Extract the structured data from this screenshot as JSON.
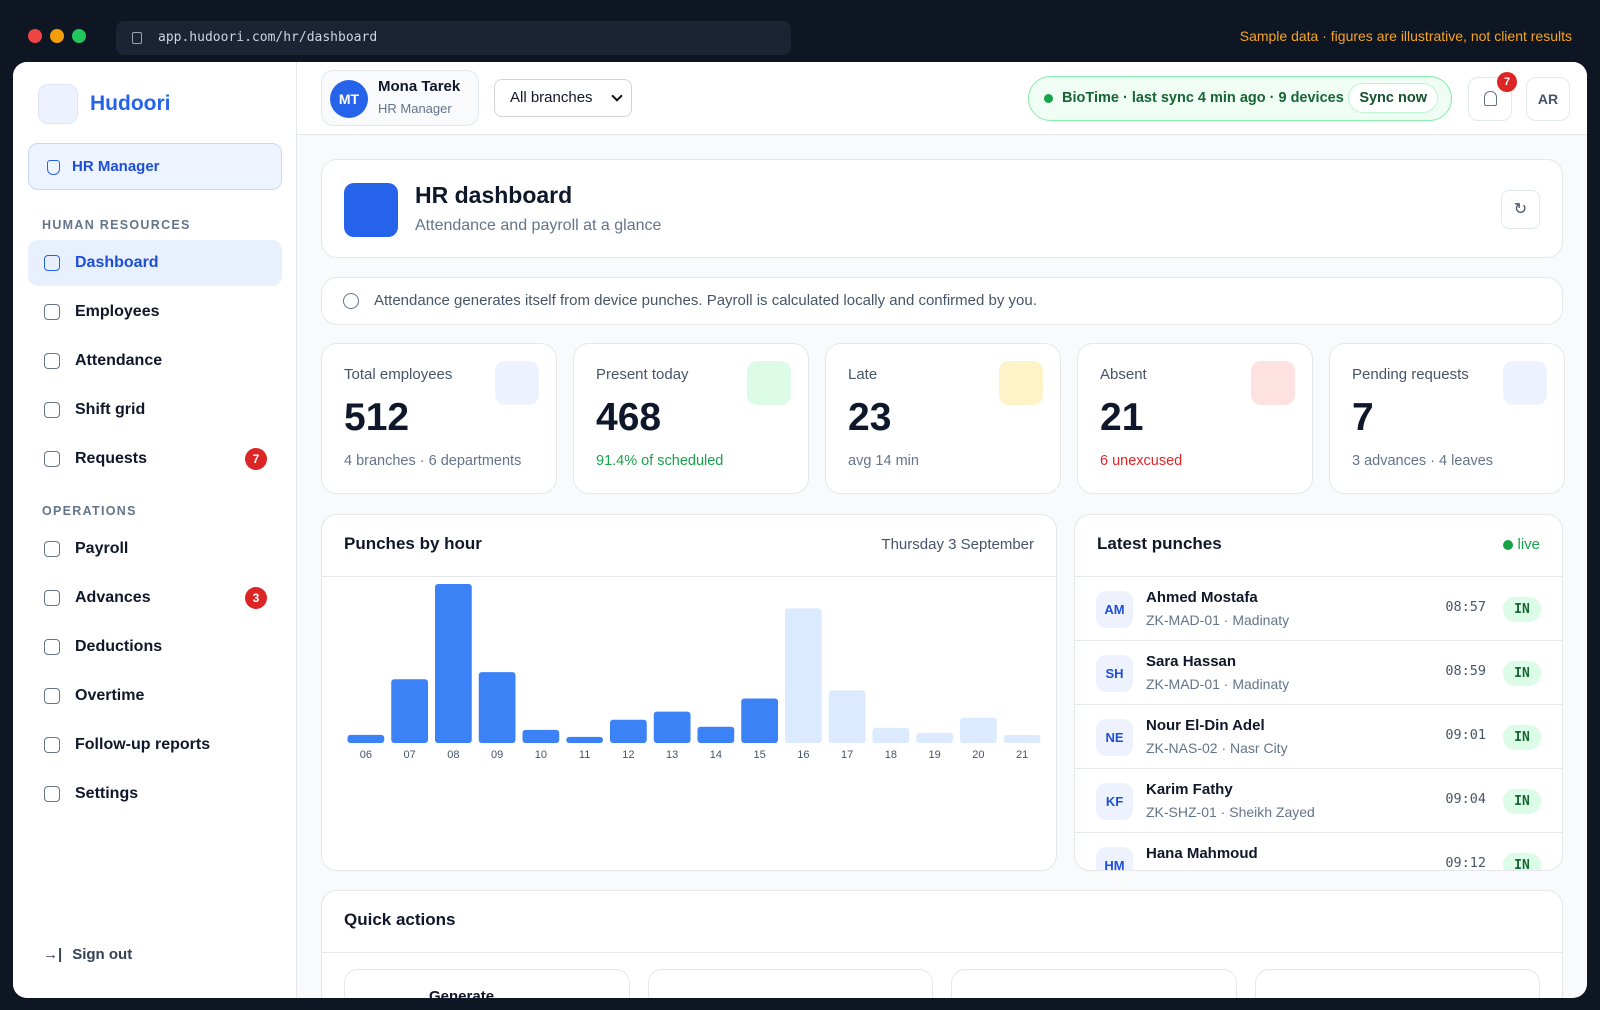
{
  "browser": {
    "url": "app.hudoori.com/hr/dashboard",
    "notice": "Sample data · figures are illustrative, not client results"
  },
  "sidebar": {
    "brand": "Hudoori",
    "role": "HR Manager",
    "sections": [
      {
        "title": "HUMAN RESOURCES",
        "items": [
          {
            "label": "Dashboard"
          },
          {
            "label": "Employees"
          },
          {
            "label": "Attendance"
          },
          {
            "label": "Shift grid"
          },
          {
            "label": "Requests",
            "badge": 7
          }
        ]
      },
      {
        "title": "OPERATIONS",
        "items": [
          {
            "label": "Payroll"
          },
          {
            "label": "Advances",
            "badge": 3
          },
          {
            "label": "Deductions"
          },
          {
            "label": "Overtime"
          },
          {
            "label": "Follow-up reports"
          },
          {
            "label": "Settings"
          }
        ]
      }
    ],
    "sign_out": "Sign out"
  },
  "topbar": {
    "user": {
      "initials": "MT",
      "name": "Mona Tarek",
      "role": "HR Manager"
    },
    "branch": "All branches",
    "sync": {
      "status": "BioTime · last sync 4 min ago · 9 devices",
      "button": "Sync now"
    },
    "notifications": 7,
    "language": "AR"
  },
  "header": {
    "title": "HR dashboard",
    "subtitle": "Attendance and payroll at a glance",
    "refresh": "↻"
  },
  "info": "Attendance generates itself from device punches. Payroll is calculated locally and confirmed by you.",
  "stats": [
    {
      "label": "Total employees",
      "value": 512,
      "note": "4 branches · 6 departments",
      "color": "#64748b",
      "icon_bg": "#eef2ff"
    },
    {
      "label": "Present today",
      "value": 468,
      "note": "91.4% of scheduled",
      "color": "#16a34a",
      "icon_bg": "#dcfce7"
    },
    {
      "label": "Late",
      "value": 23,
      "note": "avg 14 min",
      "color": "#64748b",
      "icon_bg": "#fef3c7"
    },
    {
      "label": "Absent",
      "value": 21,
      "note": "6 unexcused",
      "color": "#dc2626",
      "icon_bg": "#fee2e2"
    },
    {
      "label": "Pending requests",
      "value": 7,
      "note": "3 advances · 4 leaves",
      "color": "#64748b",
      "icon_bg": "#eef2ff"
    }
  ],
  "chart_data": {
    "type": "bar",
    "title": "Punches by hour",
    "subtitle": "Thursday 3 September",
    "categories": [
      "06",
      "07",
      "08",
      "09",
      "10",
      "11",
      "12",
      "13",
      "14",
      "15",
      "16",
      "17",
      "18",
      "19",
      "20",
      "21"
    ],
    "values": [
      8,
      63,
      157,
      70,
      13,
      6,
      23,
      31,
      16,
      44,
      133,
      52,
      15,
      10,
      25,
      8
    ],
    "colors": [
      "#3b82f6",
      "#3b82f6",
      "#3b82f6",
      "#3b82f6",
      "#3b82f6",
      "#3b82f6",
      "#3b82f6",
      "#3b82f6",
      "#3b82f6",
      "#3b82f6",
      "#dbeafe",
      "#dbeafe",
      "#dbeafe",
      "#dbeafe",
      "#dbeafe",
      "#dbeafe"
    ],
    "ylim": [
      0,
      160
    ]
  },
  "punches": {
    "title": "Latest punches",
    "status": "live",
    "rows": [
      {
        "initials": "AM",
        "name": "Ahmed Mostafa",
        "device": "ZK-MAD-01 · Madinaty",
        "time": "08:57",
        "direction": "IN"
      },
      {
        "initials": "SH",
        "name": "Sara Hassan",
        "device": "ZK-MAD-01 · Madinaty",
        "time": "08:59",
        "direction": "IN"
      },
      {
        "initials": "NE",
        "name": "Nour El-Din Adel",
        "device": "ZK-NAS-02 · Nasr City",
        "time": "09:01",
        "direction": "IN"
      },
      {
        "initials": "KF",
        "name": "Karim Fathy",
        "device": "ZK-SHZ-01 · Sheikh Zayed",
        "time": "09:04",
        "direction": "IN"
      },
      {
        "initials": "HM",
        "name": "Hana Mahmoud",
        "time": "09:12",
        "direction": "IN"
      }
    ]
  },
  "quick_actions": {
    "title": "Quick actions",
    "cards": [
      "Generate"
    ]
  }
}
